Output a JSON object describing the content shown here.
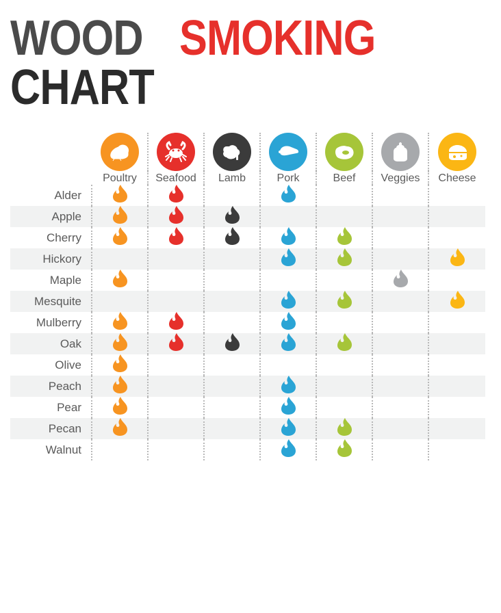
{
  "title": {
    "w1": "WOOD",
    "w2": "SMOKING",
    "w3": "CHART"
  },
  "title_colors": {
    "w1": "#4a4a4a",
    "w2": "#e6302b",
    "w3": "#2b2b2b"
  },
  "columns": [
    {
      "id": "poultry",
      "label": "Poultry",
      "bg": "#f79421",
      "icon": "poultry",
      "flame_color": "#f79421"
    },
    {
      "id": "seafood",
      "label": "Seafood",
      "bg": "#e6302b",
      "icon": "crab",
      "flame_color": "#e6302b"
    },
    {
      "id": "lamb",
      "label": "Lamb",
      "bg": "#3b3b3b",
      "icon": "lamb",
      "flame_color": "#3b3b3b"
    },
    {
      "id": "pork",
      "label": "Pork",
      "bg": "#2aa4d5",
      "icon": "pork",
      "flame_color": "#2aa4d5"
    },
    {
      "id": "beef",
      "label": "Beef",
      "bg": "#a6c539",
      "icon": "beef",
      "flame_color": "#a6c539"
    },
    {
      "id": "veggies",
      "label": "Veggies",
      "bg": "#a7a9ac",
      "icon": "pepper",
      "flame_color": "#a7a9ac"
    },
    {
      "id": "cheese",
      "label": "Cheese",
      "bg": "#fbb614",
      "icon": "cheese",
      "flame_color": "#fbb614"
    }
  ],
  "woods": [
    {
      "name": "Alder",
      "alt": false,
      "cells": [
        1,
        1,
        0,
        1,
        0,
        0,
        0
      ]
    },
    {
      "name": "Apple",
      "alt": true,
      "cells": [
        1,
        1,
        1,
        0,
        0,
        0,
        0
      ]
    },
    {
      "name": "Cherry",
      "alt": false,
      "cells": [
        1,
        1,
        1,
        1,
        1,
        0,
        0
      ]
    },
    {
      "name": "Hickory",
      "alt": true,
      "cells": [
        0,
        0,
        0,
        1,
        1,
        0,
        1
      ]
    },
    {
      "name": "Maple",
      "alt": false,
      "cells": [
        1,
        0,
        0,
        0,
        0,
        1,
        0
      ]
    },
    {
      "name": "Mesquite",
      "alt": true,
      "cells": [
        0,
        0,
        0,
        1,
        1,
        0,
        1
      ]
    },
    {
      "name": "Mulberry",
      "alt": false,
      "cells": [
        1,
        1,
        0,
        1,
        0,
        0,
        0
      ]
    },
    {
      "name": "Oak",
      "alt": true,
      "cells": [
        1,
        1,
        1,
        1,
        1,
        0,
        0
      ]
    },
    {
      "name": "Olive",
      "alt": false,
      "cells": [
        1,
        0,
        0,
        0,
        0,
        0,
        0
      ]
    },
    {
      "name": "Peach",
      "alt": true,
      "cells": [
        1,
        0,
        0,
        1,
        0,
        0,
        0
      ]
    },
    {
      "name": "Pear",
      "alt": false,
      "cells": [
        1,
        0,
        0,
        1,
        0,
        0,
        0
      ]
    },
    {
      "name": "Pecan",
      "alt": true,
      "cells": [
        1,
        0,
        0,
        1,
        1,
        0,
        0
      ]
    },
    {
      "name": "Walnut",
      "alt": false,
      "cells": [
        0,
        0,
        0,
        1,
        1,
        0,
        0
      ]
    }
  ]
}
